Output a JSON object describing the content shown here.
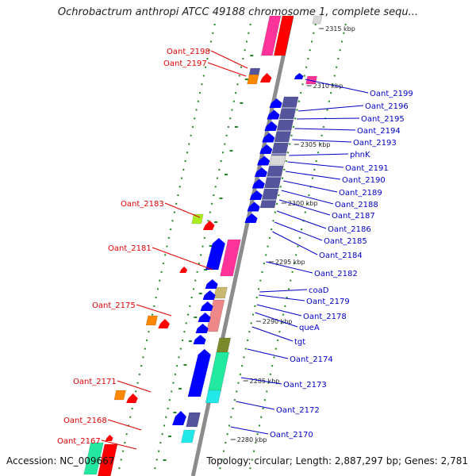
{
  "title": "Ochrobactrum anthropi ATCC 49188 chromosome 1, complete sequ...",
  "footer": {
    "accession": "Accession: NC_009667",
    "summary": "Topology: circular; Length: 2,887,297 bp; Genes: 2,781"
  },
  "kbp_ticks": [
    "2315 kbp",
    "2310 kbp",
    "2305 kbp",
    "2300 kbp",
    "2295 kbp",
    "2290 kbp",
    "2285 kbp",
    "2280 kbp"
  ],
  "left_labels": [
    "Oant_2198",
    "Oant_2197",
    "Oant_2183",
    "Oant_2181",
    "Oant_2175",
    "Oant_2171",
    "Oant_2168",
    "Oant_2167"
  ],
  "right_labels": [
    "Oant_2199",
    "Oant_2196",
    "Oant_2195",
    "Oant_2194",
    "Oant_2193",
    "phnK",
    "Oant_2191",
    "Oant_2190",
    "Oant_2189",
    "Oant_2188",
    "Oant_2187",
    "Oant_2186",
    "Oant_2185",
    "Oant_2184",
    "Oant_2182",
    "coaD",
    "Oant_2179",
    "Oant_2178",
    "queA",
    "tgt",
    "Oant_2174",
    "Oant_2173",
    "Oant_2172",
    "Oant_2170"
  ],
  "colors": {
    "backbone": "#8c8c8c",
    "dots": "#1f8a1f",
    "forward_gene": "#0000ff",
    "cds_purple": "#55559e",
    "pink": "#ff3399",
    "red": "#ff0000",
    "green_aqua": "#22e8a0",
    "cyan": "#22e8e8",
    "orange": "#ff8800",
    "lime": "#aaee22",
    "khaki": "#c8b870",
    "salmon": "#ee8888",
    "olive": "#7a8a2a",
    "light_gray": "#d8d8d8",
    "label_left": "#e00000",
    "label_right": "#0000c8"
  }
}
